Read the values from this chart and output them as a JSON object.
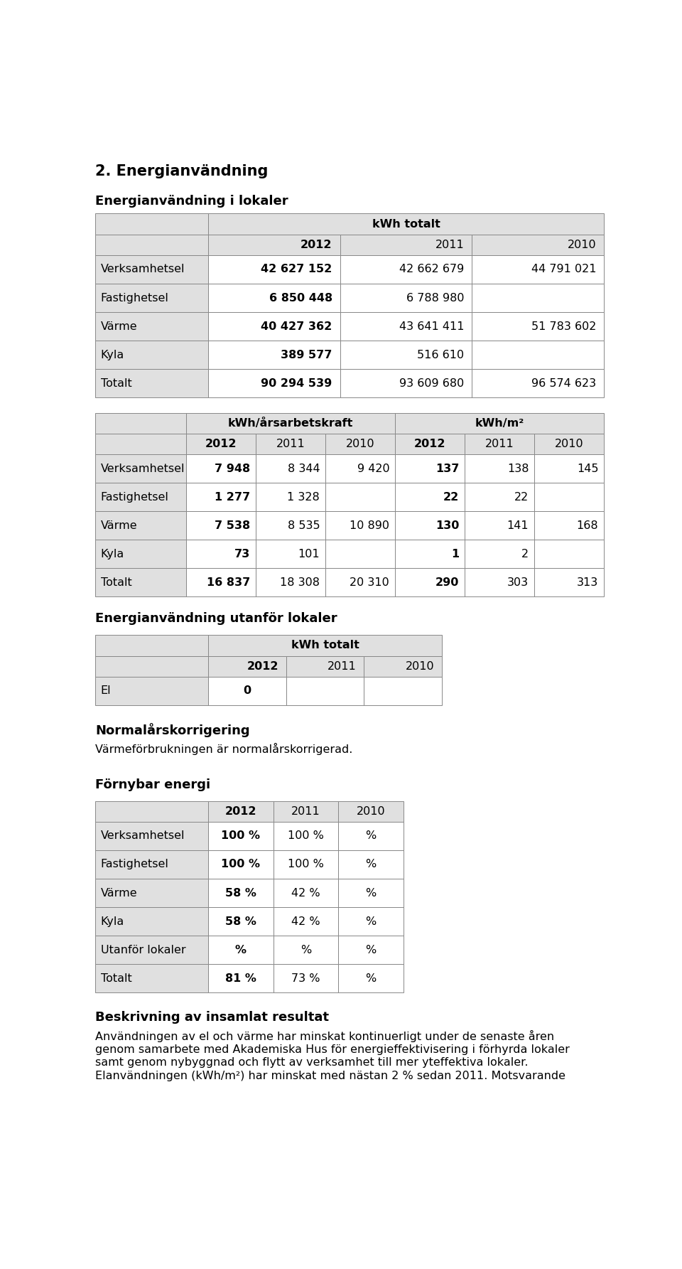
{
  "main_title": "2. Energianvändning",
  "section1_title": "Energianvändning i lokaler",
  "table1_header_top": "kWh totalt",
  "table1_years": [
    "2012",
    "2011",
    "2010"
  ],
  "table1_rows": [
    {
      "label": "Verksamhetsel",
      "vals": [
        "42 627 152",
        "42 662 679",
        "44 791 021"
      ]
    },
    {
      "label": "Fastighetsel",
      "vals": [
        "6 850 448",
        "6 788 980",
        ""
      ]
    },
    {
      "label": "Värme",
      "vals": [
        "40 427 362",
        "43 641 411",
        "51 783 602"
      ]
    },
    {
      "label": "Kyla",
      "vals": [
        "389 577",
        "516 610",
        ""
      ]
    },
    {
      "label": "Totalt",
      "vals": [
        "90 294 539",
        "93 609 680",
        "96 574 623"
      ]
    }
  ],
  "table2_header_left": "kWh/årsarbetskraft",
  "table2_header_right": "kWh/m²",
  "table2_years": [
    "2012",
    "2011",
    "2010",
    "2012",
    "2011",
    "2010"
  ],
  "table2_rows": [
    {
      "label": "Verksamhetsel",
      "vals": [
        "7 948",
        "8 344",
        "9 420",
        "137",
        "138",
        "145"
      ]
    },
    {
      "label": "Fastighetsel",
      "vals": [
        "1 277",
        "1 328",
        "",
        "22",
        "22",
        ""
      ]
    },
    {
      "label": "Värme",
      "vals": [
        "7 538",
        "8 535",
        "10 890",
        "130",
        "141",
        "168"
      ]
    },
    {
      "label": "Kyla",
      "vals": [
        "73",
        "101",
        "",
        "1",
        "2",
        ""
      ]
    },
    {
      "label": "Totalt",
      "vals": [
        "16 837",
        "18 308",
        "20 310",
        "290",
        "303",
        "313"
      ]
    }
  ],
  "section2_title": "Energianvändning utanför lokaler",
  "table3_header_top": "kWh totalt",
  "table3_years": [
    "2012",
    "2011",
    "2010"
  ],
  "table3_rows": [
    {
      "label": "El",
      "vals": [
        "0",
        "",
        ""
      ]
    }
  ],
  "normalarskorrigering_title": "Normalårskorrigering",
  "normalarskorrigering_text": "Värmeförbrukningen är normalårskorrigerad.",
  "section3_title": "Förnybar energi",
  "table4_years": [
    "2012",
    "2011",
    "2010"
  ],
  "table4_rows": [
    {
      "label": "Verksamhetsel",
      "vals": [
        "100 %",
        "100 %",
        "%"
      ]
    },
    {
      "label": "Fastighetsel",
      "vals": [
        "100 %",
        "100 %",
        "%"
      ]
    },
    {
      "label": "Värme",
      "vals": [
        "58 %",
        "42 %",
        "%"
      ]
    },
    {
      "label": "Kyla",
      "vals": [
        "58 %",
        "42 %",
        "%"
      ]
    },
    {
      "label": "Utanför lokaler",
      "vals": [
        "%",
        "%",
        "%"
      ]
    },
    {
      "label": "Totalt",
      "vals": [
        "81 %",
        "73 %",
        "%"
      ]
    }
  ],
  "section4_title": "Beskrivning av insamlat resultat",
  "section4_lines": [
    "Användningen av el och värme har minskat kontinuerligt under de senaste åren",
    "genom samarbete med Akademiska Hus för energieffektivisering i förhyrda lokaler",
    "samt genom nybyggnad och flytt av verksamhet till mer yteffektiva lokaler.",
    "Elanvändningen (kWh/m²) har minskat med nästan 2 % sedan 2011. Motsvarande"
  ],
  "bg_color": "#ffffff",
  "table_header_bg": "#e0e0e0",
  "table_row_bg": "#ffffff",
  "border_color": "#888888",
  "text_color": "#000000"
}
